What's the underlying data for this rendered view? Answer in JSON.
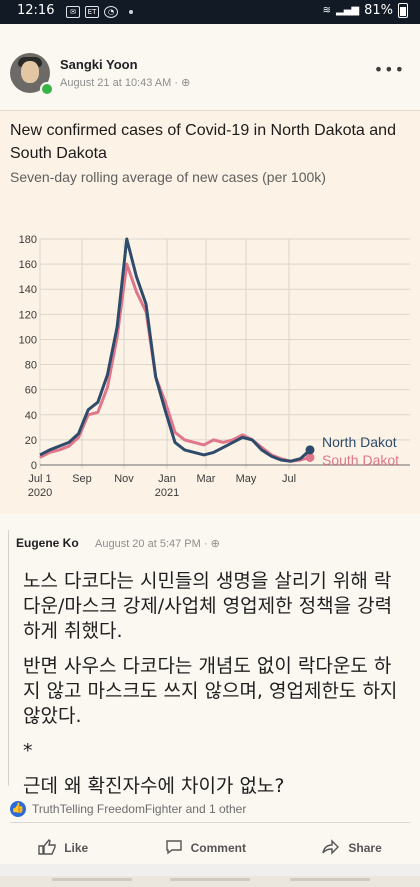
{
  "statusbar": {
    "time": "12:16",
    "battery": "81%"
  },
  "post": {
    "author": "Sangki Yoon",
    "timestamp": "August 21 at 10:43 AM · ⊕",
    "more_label": "•••"
  },
  "chart_card": {
    "title": "New confirmed cases of Covid-19 in North Dakota and South Dakota",
    "subtitle": "Seven-day rolling average of new cases (per 100k)"
  },
  "chart_data": {
    "type": "line",
    "title": "New confirmed cases of Covid-19 in North Dakota and South Dakota",
    "subtitle": "Seven-day rolling average of new cases (per 100k)",
    "ylim": [
      0,
      180
    ],
    "y_ticks": [
      0,
      20,
      40,
      60,
      80,
      100,
      120,
      140,
      160,
      180
    ],
    "x_ticks": [
      "Jul 1",
      "Sep",
      "Nov",
      "Jan",
      "Mar",
      "May",
      "Jul"
    ],
    "x_ticks_secondary": [
      "2020",
      "",
      "",
      "2021",
      "",
      "",
      ""
    ],
    "x": [
      "Jul 1",
      "Jul 15",
      "Aug 1",
      "Aug 15",
      "Sep 1",
      "Sep 15",
      "Oct 1",
      "Oct 15",
      "Nov 1",
      "Nov 10",
      "Nov 15",
      "Nov 20",
      "Dec 1",
      "Dec 15",
      "Jan 1",
      "Jan 15",
      "Feb 1",
      "Feb 15",
      "Mar 1",
      "Mar 15",
      "Apr 1",
      "Apr 15",
      "May 1",
      "May 15",
      "Jun 1",
      "Jun 15",
      "Jul 1",
      "Jul 15",
      "Aug 1"
    ],
    "series": [
      {
        "name": "North Dakot",
        "color": "#2f4b6c",
        "values": [
          8,
          12,
          15,
          18,
          25,
          44,
          50,
          72,
          110,
          180,
          150,
          128,
          70,
          43,
          18,
          12,
          10,
          8,
          10,
          14,
          18,
          22,
          20,
          12,
          7,
          4,
          3,
          5,
          12
        ]
      },
      {
        "name": "South Dakot",
        "color": "#e0768a",
        "values": [
          6,
          10,
          12,
          15,
          22,
          40,
          42,
          62,
          102,
          160,
          138,
          122,
          70,
          50,
          26,
          20,
          18,
          16,
          20,
          18,
          20,
          24,
          20,
          14,
          8,
          5,
          3,
          4,
          6
        ]
      }
    ]
  },
  "comment": {
    "author": "Eugene Ko",
    "timestamp": "August 20 at 5:47 PM · ⊕",
    "paragraphs": [
      "노스 다코다는 시민들의 생명을 살리기 위해 락다운/마스크 강제/사업체 영업제한 정책을 강력하게 취했다.",
      "반면 사우스 다코다는 개념도 없이 락다운도 하지 않고 마스크도 쓰지 않으며, 영업제한도 하지 않았다.",
      "*",
      "근데 왜 확진자수에 차이가 없노?"
    ]
  },
  "reactions": {
    "like_icon": "thumbs-up-icon",
    "text": "TruthTelling FreedomFighter and 1 other"
  },
  "actions": {
    "like": "Like",
    "comment": "Comment",
    "share": "Share"
  }
}
